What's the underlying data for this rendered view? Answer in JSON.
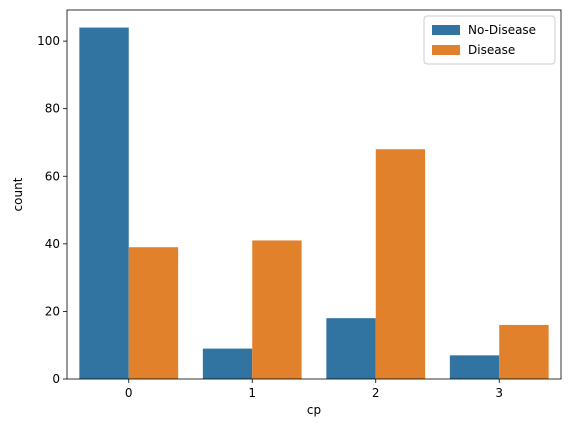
{
  "chart_data": {
    "type": "bar",
    "title": "",
    "xlabel": "cp",
    "ylabel": "count",
    "categories": [
      "0",
      "1",
      "2",
      "3"
    ],
    "series": [
      {
        "name": "No-Disease",
        "color": "#3274a1",
        "values": [
          104,
          9,
          18,
          7
        ]
      },
      {
        "name": "Disease",
        "color": "#e1812c",
        "values": [
          39,
          41,
          68,
          16
        ]
      }
    ],
    "ylim": [
      0,
      109.2
    ],
    "yticks": [
      0,
      20,
      40,
      60,
      80,
      100
    ],
    "grid": false,
    "legend_position": "top-right"
  }
}
